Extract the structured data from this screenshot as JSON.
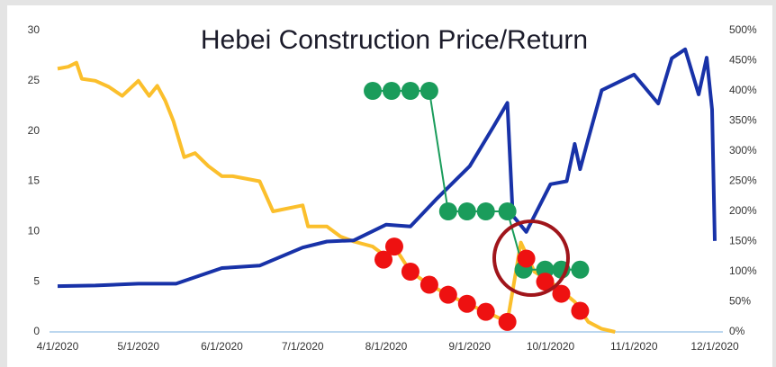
{
  "chart_data": {
    "type": "line",
    "title": "Hebei Construction Price/Return",
    "xlim": [
      "3/29/2020",
      "12/4/2020"
    ],
    "xticks": [
      "4/1/2020",
      "5/1/2020",
      "6/1/2020",
      "7/1/2020",
      "8/1/2020",
      "9/1/2020",
      "10/1/2020",
      "11/1/2020",
      "12/1/2020"
    ],
    "ylim": [
      0,
      30
    ],
    "yticks": [
      0,
      5,
      10,
      15,
      20,
      25,
      30
    ],
    "y2lim": [
      0,
      500
    ],
    "y2ticks": [
      {
        "value": 0,
        "label": "0%"
      },
      {
        "value": 50,
        "label": "50%"
      },
      {
        "value": 100,
        "label": "100%"
      },
      {
        "value": 150,
        "label": "150%"
      },
      {
        "value": 200,
        "label": "200%"
      },
      {
        "value": 250,
        "label": "250%"
      },
      {
        "value": 300,
        "label": "300%"
      },
      {
        "value": 350,
        "label": "350%"
      },
      {
        "value": 400,
        "label": "400%"
      },
      {
        "value": 450,
        "label": "450%"
      },
      {
        "value": 500,
        "label": "500%"
      }
    ],
    "series": [
      {
        "color": "#fbbf2c",
        "axis": "y",
        "marker": false,
        "x": [
          "4/1/2020",
          "4/5/2020",
          "4/8/2020",
          "4/10/2020",
          "4/15/2020",
          "4/20/2020",
          "4/25/2020",
          "5/1/2020",
          "5/5/2020",
          "5/8/2020",
          "5/11/2020",
          "5/14/2020",
          "5/18/2020",
          "5/22/2020",
          "5/27/2020",
          "6/1/2020",
          "6/5/2020",
          "6/15/2020",
          "6/20/2020",
          "7/1/2020",
          "7/3/2020",
          "7/10/2020",
          "7/15/2020",
          "7/20/2020",
          "7/27/2020",
          "8/1/2020",
          "8/4/2020",
          "8/10/2020",
          "8/17/2020",
          "8/24/2020",
          "8/31/2020",
          "9/7/2020",
          "9/15/2020",
          "9/20/2020",
          "9/25/2020",
          "10/1/2020",
          "10/10/2020",
          "10/15/2020",
          "10/20/2020",
          "10/25/2020"
        ],
        "values": [
          26.2,
          26.4,
          26.8,
          25.2,
          25.0,
          24.4,
          23.5,
          25.0,
          23.5,
          24.5,
          23.0,
          21.0,
          17.4,
          17.8,
          16.5,
          15.5,
          15.5,
          15.0,
          12.0,
          12.6,
          10.5,
          10.5,
          9.5,
          9.0,
          8.5,
          7.5,
          8.5,
          6.0,
          4.7,
          3.7,
          2.8,
          2.0,
          1.0,
          8.9,
          6.0,
          5.0,
          3.0,
          1.0,
          0.3,
          0
        ]
      },
      {
        "color": "#1832a8",
        "axis": "y2",
        "marker": false,
        "x": [
          "4/1/2020",
          "4/15/2020",
          "5/1/2020",
          "5/15/2020",
          "6/1/2020",
          "6/15/2020",
          "7/1/2020",
          "7/10/2020",
          "7/20/2020",
          "8/1/2020",
          "8/10/2020",
          "8/20/2020",
          "9/1/2020",
          "9/10/2020",
          "9/15/2020",
          "9/17/2020",
          "9/22/2020",
          "10/1/2020",
          "10/7/2020",
          "10/10/2020",
          "10/12/2020",
          "10/15/2020",
          "10/20/2020",
          "11/1/2020",
          "11/10/2020",
          "11/15/2020",
          "11/20/2020",
          "11/25/2020",
          "11/28/2020",
          "11/30/2020",
          "12/1/2020"
        ],
        "values": [
          76,
          77,
          80,
          80,
          106,
          110,
          140,
          150,
          152,
          178,
          175,
          222,
          275,
          342,
          380,
          193,
          166,
          245,
          250,
          312,
          270,
          320,
          401,
          427,
          379,
          454,
          469,
          394,
          455,
          369,
          151
        ]
      },
      {
        "color": "#1a9c5b",
        "axis": "y",
        "marker": true,
        "line": true,
        "x": [
          "7/27/2020",
          "8/3/2020",
          "8/10/2020",
          "8/17/2020",
          "8/24/2020",
          "8/31/2020",
          "9/7/2020",
          "9/15/2020",
          "9/21/2020",
          "9/29/2020",
          "10/5/2020",
          "10/12/2020"
        ],
        "values": [
          24.0,
          24.0,
          24.0,
          24.0,
          12.0,
          12.0,
          12.0,
          12.0,
          6.2,
          6.2,
          6.2,
          6.2
        ]
      },
      {
        "color": "#ee1111",
        "axis": "y",
        "marker": true,
        "line": false,
        "x": [
          "7/31/2020",
          "8/4/2020",
          "8/10/2020",
          "8/17/2020",
          "8/24/2020",
          "8/31/2020",
          "9/7/2020",
          "9/15/2020",
          "9/22/2020",
          "9/29/2020",
          "10/5/2020",
          "10/12/2020"
        ],
        "values": [
          7.2,
          8.5,
          6.0,
          4.7,
          3.7,
          2.8,
          2.0,
          1.0,
          7.3,
          5.0,
          3.8,
          2.1
        ]
      }
    ]
  }
}
